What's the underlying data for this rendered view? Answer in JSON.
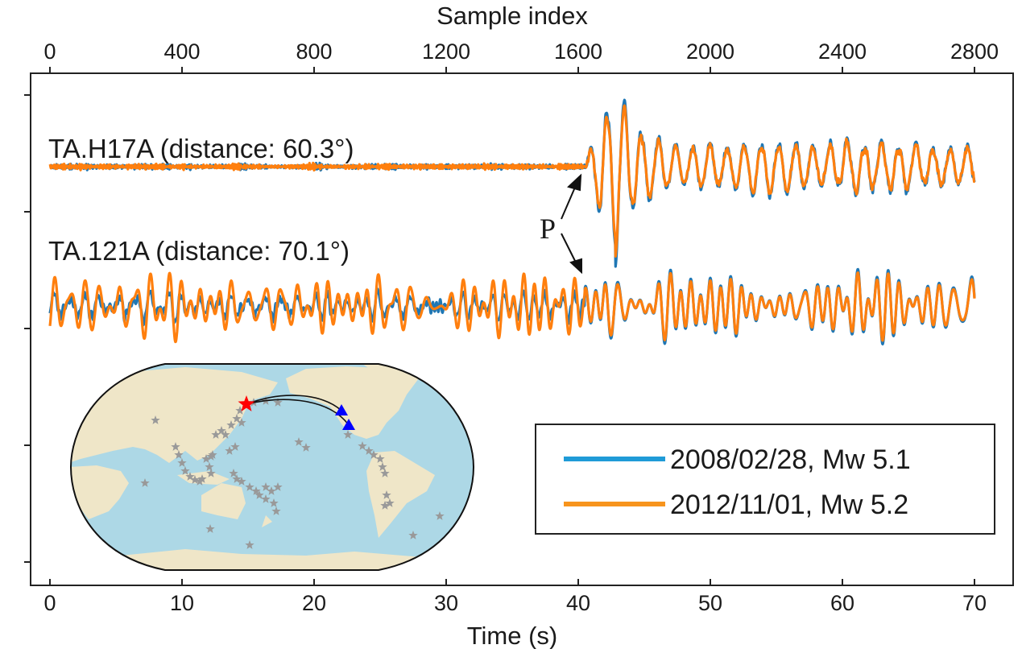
{
  "chart_data": {
    "type": "line",
    "title": "",
    "xlabel": "Time (s)",
    "x2label": "Sample index",
    "xlim": [
      0,
      70
    ],
    "x2lim": [
      0,
      2800
    ],
    "xticks": [
      "0",
      "10",
      "20",
      "30",
      "40",
      "50",
      "60",
      "70"
    ],
    "x2ticks": [
      "0",
      "400",
      "800",
      "1200",
      "1600",
      "2000",
      "2400",
      "2800"
    ],
    "ylabel": "",
    "grid": false,
    "legend_position": "bottom-right",
    "legend": [
      {
        "label": "2008/02/28, Mw 5.1",
        "color": "#1f77b4"
      },
      {
        "label": "2012/11/01, Mw 5.2",
        "color": "#ff7f0e"
      }
    ],
    "traces": [
      {
        "station": "TA.H17A (distance: 60.3°)",
        "p_arrival_s": 40.5,
        "pre_p_noise_amp": 0.03,
        "max_amp": 1.0,
        "max_amp_time_s": 42.9,
        "coda_amp": 0.3,
        "burst_window_s": [
          50,
          58
        ]
      },
      {
        "station": "TA.121A (distance: 70.1°)",
        "p_arrival_s": 40.5,
        "pre_p_noise_amp_2008": 0.15,
        "pre_p_noise_amp_2012": 0.45,
        "max_amp": 1.2,
        "max_amp_time_s": 42.2,
        "coda_amp": 0.55
      }
    ],
    "annotations": [
      {
        "text": "P",
        "points_to": "P arrival, ~40.5 s on both traces"
      }
    ]
  },
  "colors": {
    "series_2008": "#1f77b4",
    "series_2012": "#ff7f0e",
    "ocean": "#add8e6",
    "land": "#efe6c8",
    "event_star": "#ff0000",
    "station": "#0000ff",
    "seismicity": "#999999"
  }
}
